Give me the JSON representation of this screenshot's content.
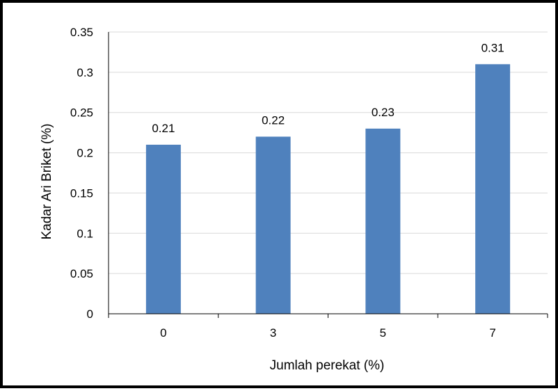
{
  "chart_data": {
    "type": "bar",
    "categories": [
      "0",
      "3",
      "5",
      "7"
    ],
    "values": [
      0.21,
      0.22,
      0.23,
      0.31
    ],
    "data_labels": [
      "0.21",
      "0.22",
      "0.23",
      "0.31"
    ],
    "xlabel": "Jumlah perekat (%)",
    "ylabel": "Kadar Ari Briket (%)",
    "ylim": [
      0,
      0.35
    ],
    "yticks": [
      0,
      0.05,
      0.1,
      0.15,
      0.2,
      0.25,
      0.3,
      0.35
    ],
    "ytick_labels": [
      "0",
      "0.05",
      "0.1",
      "0.15",
      "0.2",
      "0.25",
      "0.3",
      "0.35"
    ],
    "grid": true,
    "legend": false,
    "colors": {
      "bar": "#4f81bd",
      "grid": "#d9d9d9",
      "axis": "#000000"
    }
  }
}
